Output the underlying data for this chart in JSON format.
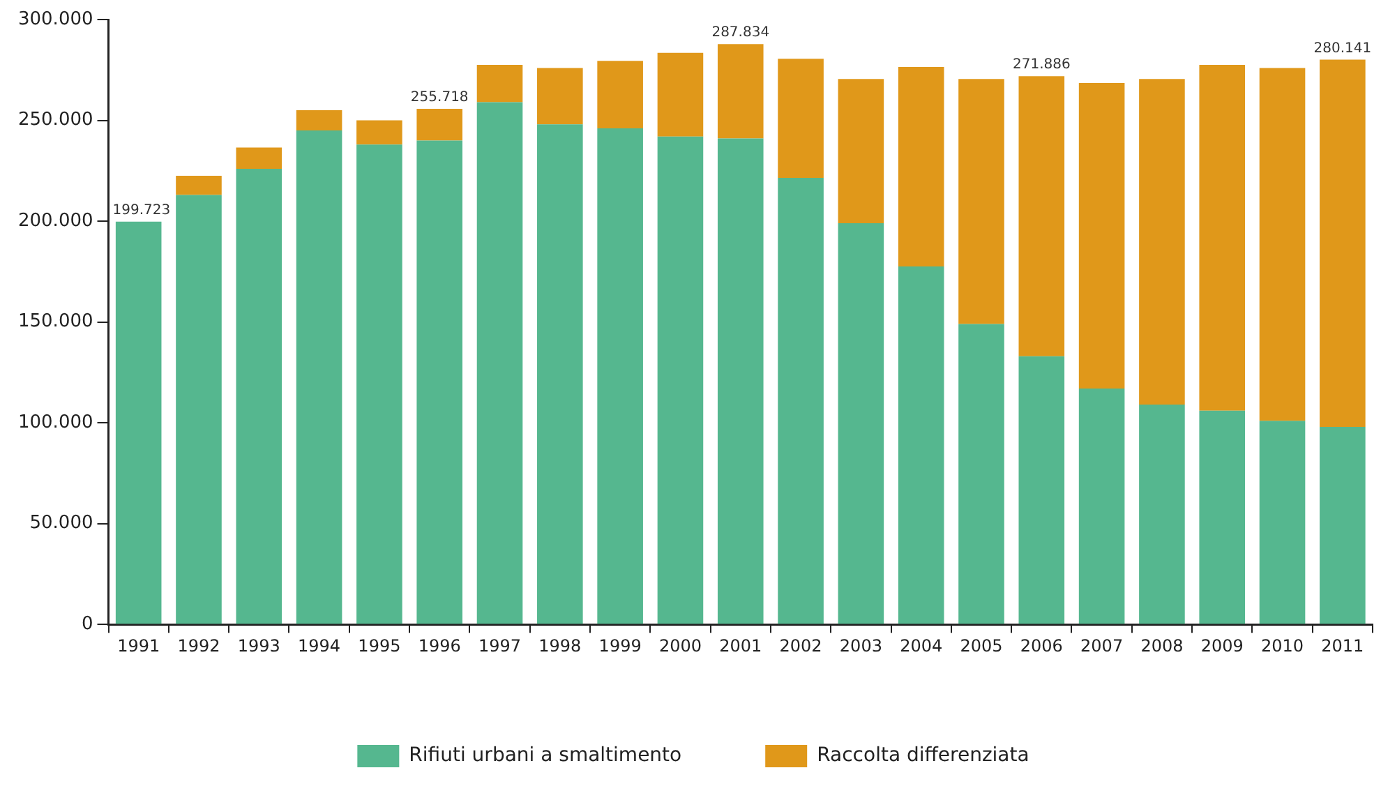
{
  "chart_data": {
    "type": "bar",
    "stacked": true,
    "categories": [
      "1991",
      "1992",
      "1993",
      "1994",
      "1995",
      "1996",
      "1997",
      "1998",
      "1999",
      "2000",
      "2001",
      "2002",
      "2003",
      "2004",
      "2005",
      "2006",
      "2007",
      "2008",
      "2009",
      "2010",
      "2011"
    ],
    "series": [
      {
        "name": "Rifiuti urbani a smaltimento",
        "color": "#55b78f",
        "values": [
          199723,
          213000,
          226000,
          245000,
          238000,
          240000,
          259000,
          248000,
          246000,
          242000,
          241000,
          221500,
          199000,
          177500,
          149000,
          133000,
          117000,
          109000,
          106000,
          101000,
          98000
        ]
      },
      {
        "name": "Raccolta differenziata",
        "color": "#e0981a",
        "values": [
          0,
          9500,
          10500,
          10000,
          12000,
          15718,
          18500,
          28000,
          33500,
          41500,
          46834,
          59000,
          71500,
          99000,
          121500,
          138886,
          151500,
          161500,
          171500,
          175000,
          182141
        ]
      }
    ],
    "totals": [
      "199.723",
      null,
      null,
      null,
      null,
      "255.718",
      null,
      null,
      null,
      null,
      "287.834",
      null,
      null,
      null,
      null,
      "271.886",
      null,
      null,
      null,
      null,
      "280.141"
    ],
    "ylim": [
      0,
      300000
    ],
    "yticks": [
      0,
      {
        "value": 50000,
        "label": "50.000"
      },
      {
        "value": 100000,
        "label": "100.000"
      },
      {
        "value": 150000,
        "label": "150.000"
      },
      {
        "value": 200000,
        "label": "200.000"
      },
      {
        "value": 250000,
        "label": "250.000"
      },
      {
        "value": 300000,
        "label": "300.000"
      }
    ],
    "grid": false,
    "legend": "bottom"
  }
}
